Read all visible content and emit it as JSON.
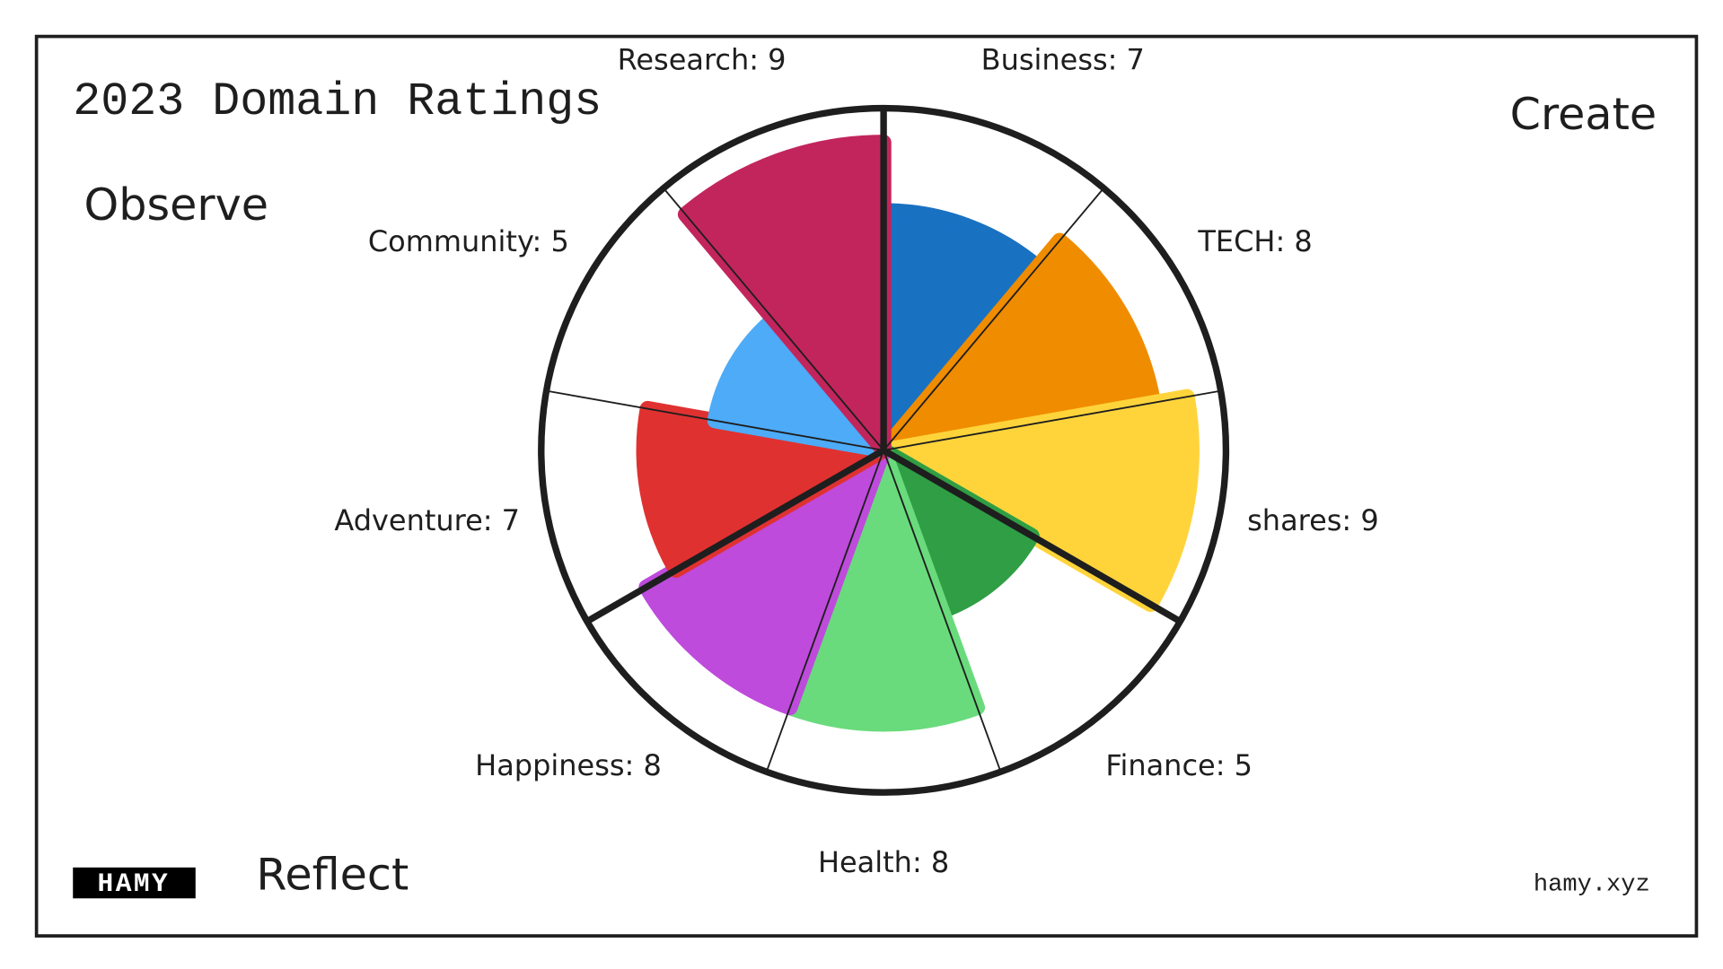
{
  "chart_data": {
    "type": "polar-area",
    "title": "2023 Domain Ratings",
    "values": [
      7,
      8,
      9,
      5,
      8,
      8,
      7,
      5,
      9
    ],
    "value_labels": [
      "Business: 7",
      "TECH: 8",
      "shares: 9",
      "Finance: 5",
      "Health: 8",
      "Happiness: 8",
      "Adventure: 7",
      "Community: 5",
      "Research: 9"
    ],
    "colors": [
      "#1971c2",
      "#f08c00",
      "#ffd43b",
      "#2f9e44",
      "#69db7c",
      "#be4bdb",
      "#e03131",
      "#4dabf7",
      "#c2255c"
    ],
    "rlim": [
      0,
      10
    ],
    "annotations": [
      "Create",
      "Observe",
      "Reflect"
    ],
    "footer": "hamy.xyz",
    "logo": "HAMY"
  }
}
